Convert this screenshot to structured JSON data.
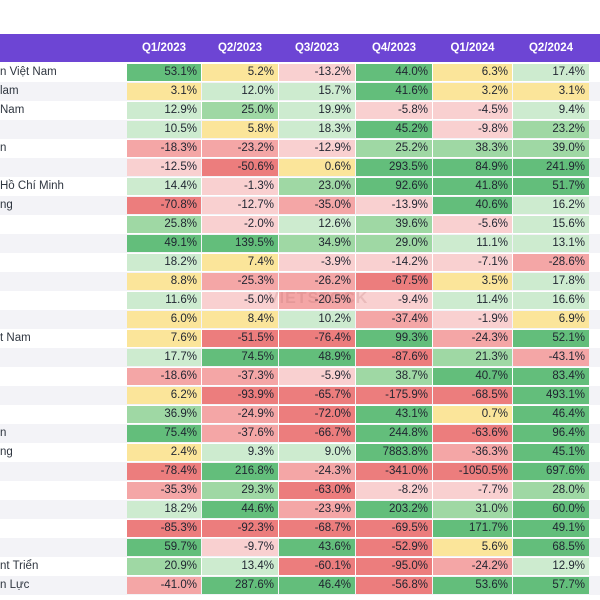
{
  "chart_data": {
    "type": "table",
    "columns": [
      "Q1/2023",
      "Q2/2023",
      "Q3/2023",
      "Q4/2023",
      "Q1/2024",
      "Q2/2024"
    ],
    "rows": [
      {
        "name": "n Việt Nam",
        "values": [
          53.1,
          5.2,
          -13.2,
          44.0,
          6.3,
          17.4
        ]
      },
      {
        "name": "lam",
        "values": [
          3.1,
          12.0,
          15.7,
          41.6,
          3.2,
          3.1
        ]
      },
      {
        "name": "Nam",
        "values": [
          12.9,
          25.0,
          19.9,
          -5.8,
          -4.5,
          9.4
        ]
      },
      {
        "name": "",
        "values": [
          10.5,
          5.8,
          18.3,
          45.2,
          -9.8,
          23.2
        ]
      },
      {
        "name": "n",
        "values": [
          -18.3,
          -23.2,
          -12.9,
          25.2,
          38.3,
          39.0
        ]
      },
      {
        "name": "",
        "values": [
          -12.5,
          -50.6,
          0.6,
          293.5,
          84.9,
          241.9
        ]
      },
      {
        "name": "Hồ Chí Minh",
        "values": [
          14.4,
          -1.3,
          23.0,
          92.6,
          41.8,
          51.7
        ]
      },
      {
        "name": "ng",
        "values": [
          -70.8,
          -12.7,
          -35.0,
          -13.9,
          40.6,
          16.2
        ]
      },
      {
        "name": "",
        "values": [
          25.8,
          -2.0,
          12.6,
          39.6,
          -5.6,
          15.6
        ]
      },
      {
        "name": "",
        "values": [
          49.1,
          139.5,
          34.9,
          29.0,
          11.1,
          13.1
        ]
      },
      {
        "name": "",
        "values": [
          18.2,
          7.4,
          -3.9,
          -14.2,
          -7.1,
          -28.6
        ]
      },
      {
        "name": "",
        "values": [
          8.8,
          -25.3,
          -26.2,
          -67.5,
          3.5,
          17.8
        ]
      },
      {
        "name": "",
        "values": [
          11.6,
          -5.0,
          -20.5,
          -9.4,
          11.4,
          16.6
        ]
      },
      {
        "name": "",
        "values": [
          6.0,
          8.4,
          10.2,
          -37.4,
          -1.9,
          6.9
        ]
      },
      {
        "name": "t Nam",
        "values": [
          7.6,
          -51.5,
          -76.4,
          99.3,
          -24.3,
          52.1
        ]
      },
      {
        "name": "",
        "values": [
          17.7,
          74.5,
          48.9,
          -87.6,
          21.3,
          -43.1
        ]
      },
      {
        "name": "",
        "values": [
          -18.6,
          -37.3,
          -5.9,
          38.7,
          40.7,
          83.4
        ]
      },
      {
        "name": "",
        "values": [
          6.2,
          -93.9,
          -65.7,
          -175.9,
          -68.5,
          493.1
        ]
      },
      {
        "name": "",
        "values": [
          36.9,
          -24.9,
          -72.0,
          43.1,
          0.7,
          46.4
        ]
      },
      {
        "name": "n",
        "values": [
          75.4,
          -37.6,
          -66.7,
          244.8,
          -63.6,
          96.4
        ]
      },
      {
        "name": "ng",
        "values": [
          2.4,
          9.3,
          9.0,
          7883.8,
          -36.3,
          45.1
        ]
      },
      {
        "name": "",
        "values": [
          -78.4,
          216.8,
          -24.3,
          -341.0,
          -1050.5,
          697.6
        ]
      },
      {
        "name": "",
        "values": [
          -35.3,
          29.3,
          -63.0,
          -8.2,
          -7.7,
          28.0
        ]
      },
      {
        "name": "",
        "values": [
          18.2,
          44.6,
          -23.9,
          203.2,
          31.0,
          60.0
        ]
      },
      {
        "name": "",
        "values": [
          -85.3,
          -92.3,
          -68.7,
          -69.5,
          171.7,
          49.1
        ]
      },
      {
        "name": "",
        "values": [
          59.7,
          -9.7,
          43.6,
          -52.9,
          5.6,
          68.5
        ]
      },
      {
        "name": "nt Triển",
        "values": [
          20.9,
          13.4,
          -60.1,
          -95.0,
          -24.2,
          12.9
        ]
      },
      {
        "name": "n Lực",
        "values": [
          -41.0,
          287.6,
          46.4,
          -56.8,
          53.6,
          57.7
        ]
      }
    ],
    "value_suffix": "%",
    "colors": {
      "header_bg": "#6d45d4",
      "strong_green": "#63be7b",
      "mid_green": "#9fd8a4",
      "light_green": "#cdebcf",
      "yellow": "#fbe59a",
      "light_red": "#f9d0d0",
      "mid_red": "#f4a6a6",
      "strong_red": "#ec7d7d"
    },
    "watermark": "VIETSTOCK"
  }
}
